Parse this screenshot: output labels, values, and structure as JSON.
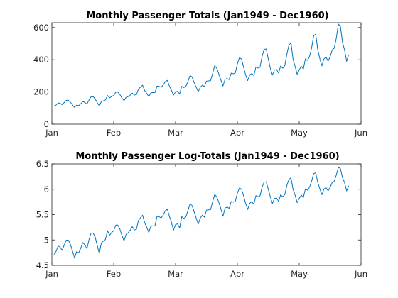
{
  "chart_data": [
    {
      "type": "line",
      "title": "Monthly Passenger Totals (Jan1949 - Dec1960)",
      "xlabel": "",
      "ylabel": "",
      "x_ticks": [
        "Jan",
        "Feb",
        "Mar",
        "Apr",
        "May",
        "Jun"
      ],
      "y_ticks": [
        "0",
        "200",
        "400",
        "600"
      ],
      "xlim": [
        0,
        150
      ],
      "ylim": [
        0,
        630
      ],
      "color": "#0072bd",
      "series": [
        {
          "values": [
            112,
            118,
            132,
            129,
            121,
            135,
            148,
            148,
            136,
            119,
            104,
            118,
            115,
            126,
            141,
            135,
            125,
            149,
            170,
            170,
            158,
            133,
            114,
            140,
            145,
            150,
            178,
            163,
            172,
            178,
            199,
            199,
            184,
            162,
            146,
            166,
            171,
            180,
            193,
            181,
            183,
            218,
            230,
            242,
            209,
            191,
            172,
            194,
            196,
            196,
            236,
            235,
            229,
            243,
            264,
            272,
            237,
            211,
            180,
            201,
            204,
            188,
            235,
            227,
            234,
            264,
            302,
            293,
            259,
            229,
            203,
            229,
            242,
            233,
            267,
            269,
            270,
            315,
            364,
            347,
            312,
            274,
            237,
            278,
            284,
            277,
            317,
            313,
            318,
            374,
            413,
            405,
            355,
            306,
            271,
            306,
            315,
            301,
            356,
            348,
            355,
            422,
            465,
            467,
            404,
            347,
            305,
            336,
            340,
            318,
            362,
            348,
            363,
            435,
            491,
            505,
            404,
            359,
            310,
            337,
            360,
            342,
            406,
            396,
            420,
            472,
            548,
            559,
            463,
            407,
            362,
            405,
            417,
            391,
            419,
            461,
            472,
            535,
            622,
            606,
            508,
            461,
            390,
            432
          ]
        }
      ]
    },
    {
      "type": "line",
      "title": "Monthly Passenger Log-Totals (Jan1949 - Dec1960)",
      "xlabel": "",
      "ylabel": "",
      "x_ticks": [
        "Jan",
        "Feb",
        "Mar",
        "Apr",
        "May",
        "Jun"
      ],
      "y_ticks": [
        "4.5",
        "5",
        "5.5",
        "6",
        "6.5"
      ],
      "xlim": [
        0,
        150
      ],
      "ylim": [
        4.5,
        6.5
      ],
      "color": "#0072bd",
      "series": [
        {
          "values": [
            4.718,
            4.771,
            4.883,
            4.86,
            4.796,
            4.905,
            4.997,
            4.997,
            4.913,
            4.779,
            4.644,
            4.771,
            4.745,
            4.836,
            4.949,
            4.905,
            4.828,
            5.004,
            5.136,
            5.136,
            5.063,
            4.89,
            4.736,
            4.942,
            4.977,
            5.011,
            5.182,
            5.094,
            5.147,
            5.182,
            5.293,
            5.293,
            5.215,
            5.088,
            4.984,
            5.112,
            5.142,
            5.193,
            5.263,
            5.198,
            5.209,
            5.384,
            5.438,
            5.489,
            5.342,
            5.252,
            5.147,
            5.268,
            5.278,
            5.278,
            5.464,
            5.46,
            5.434,
            5.493,
            5.576,
            5.606,
            5.468,
            5.352,
            5.193,
            5.303,
            5.318,
            5.236,
            5.46,
            5.425,
            5.455,
            5.576,
            5.71,
            5.68,
            5.557,
            5.434,
            5.313,
            5.434,
            5.489,
            5.451,
            5.587,
            5.595,
            5.598,
            5.753,
            5.897,
            5.849,
            5.743,
            5.613,
            5.468,
            5.628,
            5.649,
            5.624,
            5.759,
            5.746,
            5.762,
            5.924,
            6.023,
            6.004,
            5.872,
            5.724,
            5.602,
            5.724,
            5.753,
            5.707,
            5.875,
            5.852,
            5.872,
            6.045,
            6.142,
            6.146,
            6.001,
            5.849,
            5.72,
            5.817,
            5.829,
            5.762,
            5.892,
            5.852,
            5.894,
            6.075,
            6.196,
            6.225,
            6.001,
            5.883,
            5.737,
            5.82,
            5.886,
            5.835,
            6.006,
            5.981,
            6.04,
            6.157,
            6.306,
            6.326,
            6.138,
            6.009,
            5.892,
            6.004,
            6.033,
            5.969,
            6.038,
            6.133,
            6.157,
            6.283,
            6.433,
            6.407,
            6.23,
            6.133,
            5.966,
            6.068
          ]
        }
      ]
    }
  ]
}
